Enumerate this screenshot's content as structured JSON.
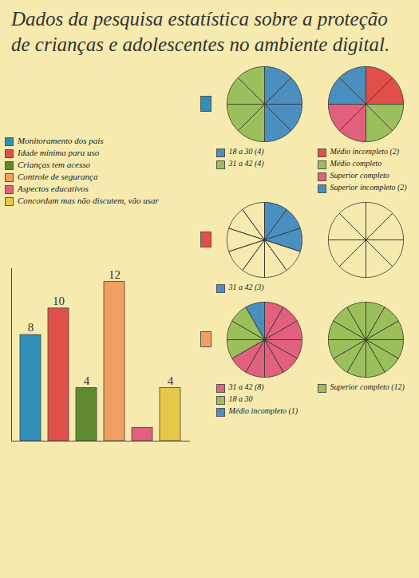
{
  "chart_data": [
    {
      "type": "bar",
      "title": "Dados da pesquisa estatística sobre a proteção de crianças e adolescentes no ambiente digital.",
      "categories": [
        "Monitoramento dos pais",
        "Idade mínima para uso",
        "Crianças tem acesso",
        "Controle de segurança",
        "Aspectos educativos",
        "Concordam mas não discutem, vão usar"
      ],
      "values": [
        8,
        10,
        4,
        12,
        1,
        4
      ],
      "value_labels": [
        "8",
        "10",
        "4",
        "12",
        null,
        "4"
      ],
      "colors": [
        "#2f8fb5",
        "#e0504a",
        "#5f8a2f",
        "#f0a060",
        "#e0607e",
        "#e8c84a"
      ],
      "ylim": [
        0,
        13
      ],
      "data_labels": true,
      "tick_labels": false
    },
    {
      "type": "pie",
      "color": "#2f8fb5",
      "categories": [
        "18 a 30 (4)",
        "31 a 42 (4)"
      ],
      "values": [
        4,
        4
      ],
      "colors": [
        "#4a8fc0",
        "#9bbf5a"
      ]
    },
    {
      "type": "pie",
      "categories": [
        "Médio incompleto (2)",
        "Médio completo",
        "Superior completo",
        "Superior incompleto (2)"
      ],
      "values": [
        2,
        2,
        2,
        2
      ],
      "colors": [
        "#e0504a",
        "#9bbf5a",
        "#e0607e",
        "#4a8fc0"
      ]
    },
    {
      "type": "pie",
      "color": "#e0504a",
      "categories": [
        "31 a 42 (3)",
        null
      ],
      "values": [
        3,
        7
      ],
      "colors": [
        "#4a8fc0",
        "none"
      ]
    },
    {
      "type": "pie",
      "categories": [
        null
      ],
      "values": [
        8
      ],
      "colors": [
        "none"
      ]
    },
    {
      "type": "pie",
      "color": "#f0a060",
      "categories": [
        "31 a 42 (8)",
        "18 a 30",
        "Médio incompleto (1)"
      ],
      "values": [
        8,
        3,
        1
      ],
      "colors": [
        "#e0607e",
        "#9bbf5a",
        "#4a8fc0"
      ]
    },
    {
      "type": "pie",
      "categories": [
        "Superior completo (12)"
      ],
      "values": [
        12
      ],
      "colors": [
        "#9bbf5a"
      ]
    }
  ]
}
